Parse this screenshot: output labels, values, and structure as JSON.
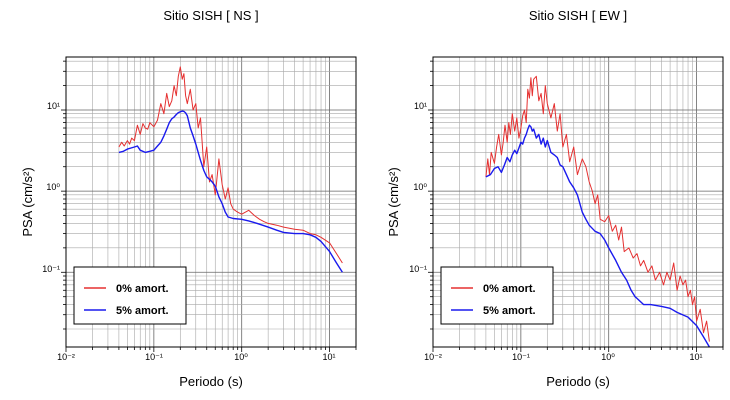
{
  "chart_data": [
    {
      "type": "line",
      "title": "Sitio SISH [ NS ]",
      "xlabel": "Periodo (s)",
      "ylabel": "PSA (cm/s²)",
      "xscale": "log",
      "yscale": "log",
      "xlim": [
        0.01,
        20
      ],
      "ylim": [
        0.012,
        45
      ],
      "grid": true,
      "legend_position": "bottom-left",
      "x_ticks": [
        "10⁻²",
        "10⁻¹",
        "10⁰",
        "10¹"
      ],
      "y_ticks": [
        "10⁻¹",
        "10⁰",
        "10¹"
      ],
      "series": [
        {
          "name": "0% amort.",
          "color": "#e53030",
          "x": [
            0.04,
            0.043,
            0.046,
            0.05,
            0.053,
            0.056,
            0.06,
            0.065,
            0.07,
            0.075,
            0.08,
            0.085,
            0.09,
            0.1,
            0.11,
            0.12,
            0.13,
            0.14,
            0.15,
            0.16,
            0.17,
            0.18,
            0.19,
            0.2,
            0.21,
            0.22,
            0.23,
            0.24,
            0.26,
            0.28,
            0.3,
            0.32,
            0.34,
            0.37,
            0.4,
            0.43,
            0.46,
            0.5,
            0.55,
            0.6,
            0.65,
            0.7,
            0.75,
            0.8,
            0.9,
            1.0,
            1.2,
            1.4,
            1.6,
            1.8,
            2.0,
            2.5,
            3.0,
            4.0,
            5.0,
            6.0,
            7.0,
            8.0,
            10.0,
            12.0,
            14.0
          ],
          "y": [
            3.5,
            4.0,
            3.6,
            4.2,
            3.8,
            4.5,
            4.2,
            6.5,
            5.0,
            6.8,
            6.0,
            5.8,
            7.0,
            6.2,
            7.5,
            12.0,
            9.0,
            16.0,
            11.0,
            13.0,
            20.0,
            15.0,
            26.0,
            34.0,
            24.0,
            28.0,
            15.0,
            12.0,
            18.0,
            10.0,
            12.0,
            6.0,
            8.0,
            2.0,
            3.5,
            1.3,
            1.6,
            0.9,
            2.5,
            1.2,
            0.8,
            1.1,
            0.7,
            0.6,
            0.55,
            0.52,
            0.58,
            0.5,
            0.45,
            0.42,
            0.4,
            0.38,
            0.36,
            0.34,
            0.33,
            0.3,
            0.29,
            0.27,
            0.23,
            0.17,
            0.13
          ]
        },
        {
          "name": "5% amort.",
          "color": "#1a1aee",
          "x": [
            0.04,
            0.045,
            0.05,
            0.055,
            0.06,
            0.065,
            0.07,
            0.08,
            0.09,
            0.1,
            0.11,
            0.12,
            0.13,
            0.14,
            0.15,
            0.16,
            0.17,
            0.18,
            0.19,
            0.2,
            0.21,
            0.22,
            0.23,
            0.24,
            0.26,
            0.28,
            0.3,
            0.32,
            0.34,
            0.37,
            0.4,
            0.43,
            0.46,
            0.5,
            0.55,
            0.6,
            0.65,
            0.7,
            0.8,
            1.0,
            1.2,
            1.5,
            2.0,
            2.5,
            3.0,
            4.0,
            5.0,
            6.0,
            7.0,
            8.0,
            10.0,
            12.0,
            14.0
          ],
          "y": [
            3.0,
            3.1,
            3.3,
            3.4,
            3.5,
            3.6,
            3.2,
            3.0,
            3.1,
            3.2,
            3.6,
            4.0,
            4.8,
            5.8,
            7.0,
            7.8,
            8.2,
            8.8,
            9.3,
            9.5,
            9.7,
            9.6,
            9.2,
            8.5,
            6.0,
            4.8,
            3.8,
            3.0,
            2.4,
            1.8,
            1.5,
            1.4,
            1.3,
            1.15,
            0.85,
            0.7,
            0.55,
            0.48,
            0.46,
            0.45,
            0.43,
            0.4,
            0.36,
            0.33,
            0.31,
            0.3,
            0.3,
            0.29,
            0.27,
            0.24,
            0.18,
            0.13,
            0.1
          ]
        }
      ]
    },
    {
      "type": "line",
      "title": "Sitio SISH [ EW ]",
      "xlabel": "Periodo (s)",
      "ylabel": "PSA (cm/s²)",
      "xscale": "log",
      "yscale": "log",
      "xlim": [
        0.01,
        20
      ],
      "ylim": [
        0.012,
        45
      ],
      "grid": true,
      "legend_position": "bottom-left",
      "x_ticks": [
        "10⁻²",
        "10⁻¹",
        "10⁰",
        "10¹"
      ],
      "y_ticks": [
        "10⁻¹",
        "10⁰",
        "10¹"
      ],
      "series": [
        {
          "name": "0% amort.",
          "color": "#e53030",
          "x": [
            0.04,
            0.042,
            0.044,
            0.046,
            0.05,
            0.053,
            0.056,
            0.06,
            0.063,
            0.066,
            0.07,
            0.073,
            0.076,
            0.08,
            0.085,
            0.09,
            0.095,
            0.1,
            0.105,
            0.11,
            0.115,
            0.12,
            0.125,
            0.13,
            0.135,
            0.14,
            0.15,
            0.16,
            0.17,
            0.18,
            0.19,
            0.2,
            0.22,
            0.24,
            0.26,
            0.28,
            0.3,
            0.33,
            0.36,
            0.4,
            0.44,
            0.5,
            0.55,
            0.6,
            0.65,
            0.7,
            0.75,
            0.8,
            0.9,
            1.0,
            1.1,
            1.2,
            1.3,
            1.4,
            1.5,
            1.7,
            1.9,
            2.1,
            2.3,
            2.5,
            2.8,
            3.1,
            3.4,
            3.8,
            4.2,
            4.6,
            5.0,
            5.5,
            6.0,
            6.5,
            7.0,
            7.5,
            8.0,
            8.5,
            9.0,
            9.5,
            10.0,
            11.0,
            12.0,
            13.0,
            14.0
          ],
          "y": [
            1.5,
            2.5,
            1.6,
            3.0,
            2.2,
            3.5,
            5.0,
            2.8,
            4.0,
            6.5,
            4.0,
            7.0,
            5.0,
            9.0,
            5.5,
            8.0,
            4.5,
            6.0,
            8.5,
            10.0,
            7.0,
            18.0,
            14.0,
            25.0,
            15.0,
            24.0,
            26.0,
            13.0,
            16.0,
            9.0,
            20.0,
            12.0,
            8.0,
            12.0,
            5.5,
            9.0,
            3.5,
            5.0,
            2.3,
            3.5,
            1.6,
            2.5,
            2.0,
            1.3,
            1.0,
            0.7,
            0.9,
            0.45,
            0.42,
            0.5,
            0.32,
            0.38,
            0.25,
            0.36,
            0.18,
            0.2,
            0.15,
            0.17,
            0.12,
            0.14,
            0.1,
            0.12,
            0.08,
            0.1,
            0.07,
            0.1,
            0.08,
            0.13,
            0.06,
            0.09,
            0.07,
            0.08,
            0.05,
            0.06,
            0.04,
            0.05,
            0.025,
            0.035,
            0.018,
            0.025,
            0.014
          ]
        },
        {
          "name": "5% amort.",
          "color": "#1a1aee",
          "x": [
            0.04,
            0.045,
            0.05,
            0.055,
            0.06,
            0.065,
            0.07,
            0.075,
            0.08,
            0.085,
            0.09,
            0.095,
            0.1,
            0.105,
            0.11,
            0.115,
            0.12,
            0.125,
            0.13,
            0.135,
            0.14,
            0.15,
            0.16,
            0.17,
            0.18,
            0.19,
            0.2,
            0.22,
            0.24,
            0.26,
            0.28,
            0.3,
            0.33,
            0.36,
            0.4,
            0.44,
            0.5,
            0.55,
            0.6,
            0.7,
            0.8,
            0.9,
            1.0,
            1.2,
            1.4,
            1.6,
            1.8,
            2.0,
            2.5,
            3.0,
            4.0,
            5.0,
            6.0,
            8.0,
            10.0,
            12.0,
            14.0
          ],
          "y": [
            1.5,
            1.6,
            1.9,
            2.0,
            1.7,
            2.1,
            2.6,
            2.3,
            2.8,
            3.2,
            2.9,
            3.4,
            4.0,
            3.8,
            4.5,
            5.0,
            5.8,
            6.5,
            6.2,
            5.5,
            5.8,
            4.5,
            5.0,
            3.8,
            4.5,
            3.5,
            4.2,
            3.0,
            2.8,
            2.6,
            2.1,
            2.0,
            1.6,
            1.3,
            1.1,
            0.9,
            0.55,
            0.45,
            0.38,
            0.32,
            0.3,
            0.25,
            0.2,
            0.14,
            0.1,
            0.08,
            0.06,
            0.05,
            0.04,
            0.04,
            0.038,
            0.036,
            0.032,
            0.028,
            0.022,
            0.016,
            0.012
          ]
        }
      ]
    }
  ]
}
